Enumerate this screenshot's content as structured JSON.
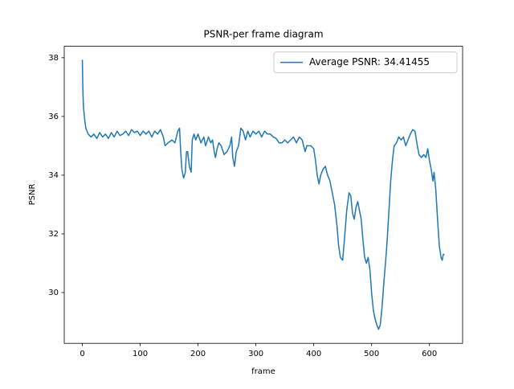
{
  "chart_data": {
    "type": "line",
    "title": "PSNR-per frame diagram",
    "x_label": "frame",
    "y_label": "PSNR",
    "x": [
      0,
      1,
      2,
      4,
      6,
      10,
      15,
      20,
      25,
      30,
      35,
      40,
      45,
      50,
      55,
      60,
      65,
      70,
      75,
      80,
      85,
      90,
      95,
      100,
      105,
      110,
      115,
      120,
      125,
      130,
      135,
      140,
      143,
      148,
      155,
      160,
      165,
      168,
      170,
      172,
      175,
      178,
      180,
      182,
      185,
      188,
      190,
      193,
      196,
      200,
      205,
      210,
      213,
      218,
      222,
      225,
      228,
      230,
      233,
      236,
      240,
      245,
      250,
      255,
      258,
      260,
      263,
      266,
      270,
      274,
      278,
      282,
      286,
      290,
      295,
      300,
      305,
      310,
      315,
      320,
      325,
      330,
      335,
      340,
      345,
      350,
      355,
      360,
      365,
      370,
      375,
      380,
      385,
      388,
      392,
      395,
      400,
      403,
      406,
      409,
      412,
      416,
      420,
      424,
      428,
      432,
      436,
      440,
      443,
      446,
      450,
      453,
      457,
      461,
      464,
      467,
      470,
      473,
      476,
      479,
      482,
      485,
      488,
      491,
      494,
      497,
      500,
      503,
      506,
      509,
      512,
      515,
      518,
      521,
      524,
      527,
      530,
      533,
      536,
      539,
      543,
      547,
      551,
      555,
      559,
      563,
      567,
      571,
      575,
      579,
      582,
      586,
      590,
      594,
      597,
      600,
      603,
      606,
      608,
      611,
      614,
      617,
      620,
      622,
      624,
      626
    ],
    "series": [
      {
        "name": "Average PSNR: 34.41455",
        "color": "#1f77b4",
        "values": [
          37.93,
          36.8,
          36.3,
          35.9,
          35.6,
          35.4,
          35.3,
          35.4,
          35.25,
          35.45,
          35.3,
          35.4,
          35.25,
          35.45,
          35.3,
          35.5,
          35.35,
          35.4,
          35.5,
          35.35,
          35.55,
          35.45,
          35.5,
          35.35,
          35.5,
          35.4,
          35.5,
          35.3,
          35.5,
          35.4,
          35.55,
          35.3,
          35.0,
          35.1,
          35.2,
          35.1,
          35.5,
          35.6,
          34.8,
          34.2,
          33.9,
          34.1,
          34.8,
          34.8,
          34.3,
          34.1,
          35.2,
          35.4,
          35.2,
          35.4,
          35.1,
          35.3,
          35.0,
          35.3,
          35.1,
          35.2,
          34.8,
          34.6,
          34.9,
          35.1,
          35.0,
          34.7,
          34.8,
          35.0,
          35.3,
          34.6,
          34.3,
          34.8,
          35.0,
          35.6,
          35.5,
          35.2,
          35.5,
          35.3,
          35.5,
          35.4,
          35.5,
          35.3,
          35.5,
          35.4,
          35.4,
          35.3,
          35.25,
          35.1,
          35.1,
          35.2,
          35.1,
          35.2,
          35.3,
          35.1,
          35.3,
          35.2,
          34.8,
          35.0,
          35.0,
          35.0,
          34.9,
          34.5,
          34.0,
          33.7,
          34.0,
          34.2,
          34.3,
          34.0,
          33.8,
          33.4,
          33.0,
          32.3,
          31.6,
          31.2,
          31.1,
          31.8,
          32.8,
          33.4,
          33.3,
          32.7,
          32.5,
          32.9,
          33.1,
          32.8,
          32.5,
          31.8,
          31.2,
          31.0,
          31.2,
          30.8,
          30.0,
          29.4,
          29.1,
          28.9,
          28.75,
          28.9,
          29.5,
          30.3,
          31.0,
          31.8,
          32.8,
          33.8,
          34.5,
          35.0,
          35.1,
          35.3,
          35.2,
          35.3,
          35.0,
          35.2,
          35.4,
          35.55,
          35.5,
          35.0,
          34.7,
          34.6,
          34.7,
          34.6,
          34.9,
          34.5,
          34.2,
          33.8,
          34.1,
          33.5,
          32.5,
          31.6,
          31.2,
          31.1,
          31.3,
          31.3
        ]
      }
    ],
    "xlim": [
      -31.3,
      657.3
    ],
    "ylim": [
      28.27,
      38.39
    ],
    "xticks": [
      0,
      100,
      200,
      300,
      400,
      500,
      600
    ],
    "yticks": [
      30,
      32,
      34,
      36,
      38
    ],
    "legend": "upper right"
  }
}
